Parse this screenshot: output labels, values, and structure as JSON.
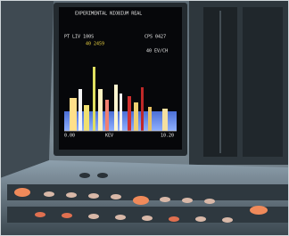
{
  "screen": {
    "header": "EXPERIMENTAL NIOBIUM REAL",
    "line2": "PT LIV 100S",
    "counts": "CPS 0427",
    "marker": "40 2459",
    "scale": "40 EV/CH",
    "x_start": "0.00",
    "x_unit": "KEV",
    "x_end": "10.20"
  }
}
